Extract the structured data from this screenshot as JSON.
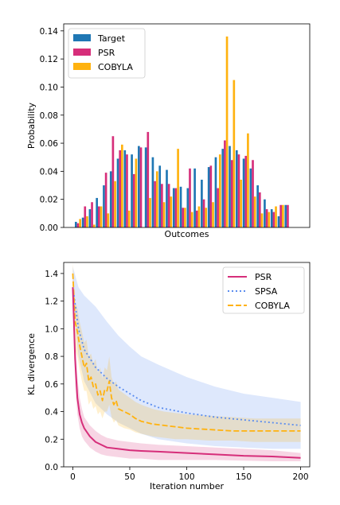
{
  "chart_data": [
    {
      "type": "bar",
      "xlabel": "Outcomes",
      "ylabel": "Probability",
      "ylim": [
        0,
        0.145
      ],
      "yticks": [
        0.0,
        0.02,
        0.04,
        0.06,
        0.08,
        0.1,
        0.12,
        0.14
      ],
      "ytick_labels": [
        "0.00",
        "0.02",
        "0.04",
        "0.06",
        "0.08",
        "0.10",
        "0.12",
        "0.14"
      ],
      "legend_position": "top-left",
      "n_outcomes": 32,
      "series": [
        {
          "name": "Target",
          "color": "#1f77b4",
          "values": [
            0.004,
            0.007,
            0.013,
            0.021,
            0.03,
            0.04,
            0.049,
            0.055,
            0.052,
            0.058,
            0.057,
            0.05,
            0.044,
            0.041,
            0.028,
            0.029,
            0.028,
            0.042,
            0.034,
            0.043,
            0.05,
            0.056,
            0.058,
            0.055,
            0.049,
            0.042,
            0.03,
            0.02,
            0.013,
            0.008,
            0.016,
            0.0
          ]
        },
        {
          "name": "PSR",
          "color": "#d62e7a",
          "values": [
            0.003,
            0.015,
            0.018,
            0.015,
            0.039,
            0.065,
            0.055,
            0.052,
            0.038,
            0.057,
            0.068,
            0.033,
            0.031,
            0.031,
            0.028,
            0.014,
            0.042,
            0.012,
            0.02,
            0.044,
            0.028,
            0.062,
            0.048,
            0.052,
            0.051,
            0.048,
            0.025,
            0.013,
            0.011,
            0.016,
            0.016,
            0.0
          ]
        },
        {
          "name": "COBYLA",
          "color": "#ffb20f",
          "values": [
            0.006,
            0.008,
            0.002,
            0.015,
            0.01,
            0.033,
            0.059,
            0.012,
            0.049,
            0.0,
            0.021,
            0.04,
            0.018,
            0.022,
            0.056,
            0.014,
            0.011,
            0.015,
            0.014,
            0.018,
            0.052,
            0.136,
            0.105,
            0.034,
            0.067,
            0.022,
            0.01,
            0.011,
            0.015,
            0.016,
            0.0,
            0.0
          ]
        }
      ]
    },
    {
      "type": "line",
      "xlabel": "Iteration number",
      "ylabel": "KL divergence",
      "xlim": [
        -8,
        208
      ],
      "ylim": [
        0,
        1.48
      ],
      "xticks": [
        0,
        50,
        100,
        150,
        200
      ],
      "xtick_labels": [
        "0",
        "50",
        "100",
        "150",
        "200"
      ],
      "yticks": [
        0.0,
        0.2,
        0.4,
        0.6,
        0.8,
        1.0,
        1.2,
        1.4
      ],
      "ytick_labels": [
        "0.0",
        "0.2",
        "0.4",
        "0.6",
        "0.8",
        "1.0",
        "1.2",
        "1.4"
      ],
      "legend_position": "top-right",
      "series": [
        {
          "name": "PSR",
          "color": "#d62e7a",
          "linestyle": "solid",
          "x": [
            0,
            2,
            4,
            6,
            8,
            10,
            15,
            20,
            25,
            30,
            40,
            50,
            60,
            75,
            100,
            125,
            150,
            175,
            200
          ],
          "y": [
            1.3,
            0.78,
            0.5,
            0.38,
            0.32,
            0.28,
            0.22,
            0.18,
            0.16,
            0.14,
            0.13,
            0.12,
            0.115,
            0.11,
            0.1,
            0.09,
            0.08,
            0.075,
            0.065
          ],
          "lower": [
            1.2,
            0.6,
            0.38,
            0.28,
            0.22,
            0.19,
            0.14,
            0.11,
            0.09,
            0.08,
            0.07,
            0.06,
            0.06,
            0.05,
            0.05,
            0.05,
            0.045,
            0.04,
            0.04
          ],
          "upper": [
            1.4,
            0.95,
            0.65,
            0.5,
            0.42,
            0.36,
            0.3,
            0.26,
            0.23,
            0.21,
            0.19,
            0.18,
            0.17,
            0.16,
            0.15,
            0.14,
            0.13,
            0.12,
            0.1
          ]
        },
        {
          "name": "SPSA",
          "color": "#5b8def",
          "linestyle": "dotted",
          "x": [
            0,
            5,
            10,
            20,
            30,
            40,
            50,
            60,
            75,
            100,
            125,
            150,
            175,
            200
          ],
          "y": [
            1.3,
            1.0,
            0.85,
            0.72,
            0.64,
            0.58,
            0.53,
            0.48,
            0.43,
            0.39,
            0.36,
            0.34,
            0.32,
            0.3
          ],
          "lower": [
            1.2,
            0.8,
            0.62,
            0.46,
            0.38,
            0.32,
            0.28,
            0.24,
            0.2,
            0.17,
            0.15,
            0.14,
            0.13,
            0.13
          ],
          "upper": [
            1.45,
            1.3,
            1.24,
            1.16,
            1.05,
            0.95,
            0.87,
            0.8,
            0.74,
            0.65,
            0.58,
            0.53,
            0.5,
            0.47
          ]
        },
        {
          "name": "COBYLA",
          "color": "#ffb20f",
          "linestyle": "dashed",
          "x": [
            0,
            2,
            4,
            6,
            8,
            10,
            12,
            14,
            16,
            18,
            20,
            22,
            24,
            26,
            28,
            30,
            32,
            34,
            36,
            38,
            40,
            45,
            50,
            55,
            60,
            70,
            80,
            90,
            100,
            120,
            140,
            160,
            180,
            200
          ],
          "y": [
            1.4,
            1.05,
            0.98,
            0.88,
            0.8,
            0.72,
            0.75,
            0.62,
            0.65,
            0.58,
            0.6,
            0.52,
            0.55,
            0.48,
            0.56,
            0.55,
            0.62,
            0.5,
            0.45,
            0.48,
            0.42,
            0.4,
            0.38,
            0.35,
            0.33,
            0.31,
            0.3,
            0.29,
            0.28,
            0.27,
            0.26,
            0.26,
            0.26,
            0.26
          ],
          "lower": [
            1.3,
            0.85,
            0.8,
            0.7,
            0.62,
            0.55,
            0.55,
            0.45,
            0.48,
            0.42,
            0.44,
            0.38,
            0.4,
            0.35,
            0.4,
            0.4,
            0.45,
            0.36,
            0.32,
            0.34,
            0.3,
            0.28,
            0.27,
            0.25,
            0.24,
            0.22,
            0.21,
            0.2,
            0.2,
            0.19,
            0.19,
            0.18,
            0.18,
            0.18
          ],
          "upper": [
            1.48,
            1.2,
            1.15,
            1.05,
            0.98,
            0.9,
            0.92,
            0.8,
            0.82,
            0.75,
            0.78,
            0.68,
            0.72,
            0.64,
            0.72,
            0.7,
            0.8,
            0.65,
            0.6,
            0.62,
            0.56,
            0.53,
            0.5,
            0.47,
            0.45,
            0.42,
            0.4,
            0.39,
            0.38,
            0.37,
            0.36,
            0.35,
            0.35,
            0.35
          ]
        }
      ]
    }
  ]
}
